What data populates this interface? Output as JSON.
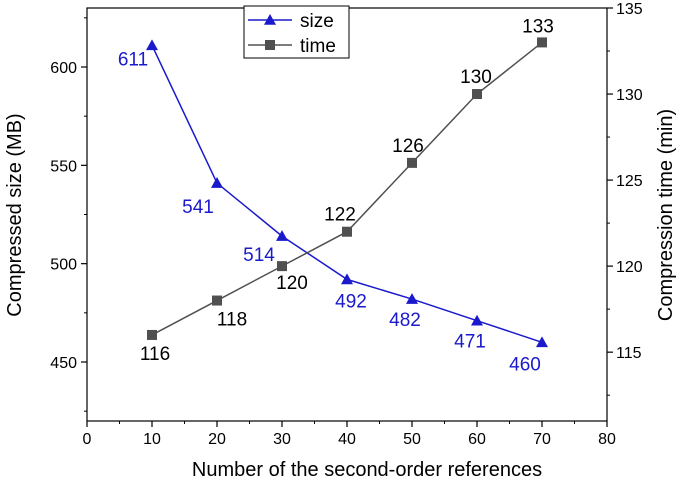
{
  "chart_data": {
    "type": "line",
    "xlabel": "Number of the second-order references",
    "ylabel_left": "Compressed size (MB)",
    "ylabel_right": "Compression time (min)",
    "x": [
      10,
      20,
      30,
      40,
      50,
      60,
      70
    ],
    "xlim": [
      0,
      80
    ],
    "xticks": [
      0,
      10,
      20,
      30,
      40,
      50,
      60,
      70,
      80
    ],
    "ylim_left": [
      420,
      630
    ],
    "yticks_left": [
      450,
      500,
      550,
      600
    ],
    "ylim_right": [
      111,
      135
    ],
    "yticks_right": [
      115,
      120,
      125,
      130,
      135
    ],
    "grid": false,
    "legend_position": "top-center",
    "series": [
      {
        "name": "size",
        "axis": "left",
        "color": "#1a1acc",
        "marker": "triangle",
        "values": [
          611,
          541,
          514,
          492,
          482,
          471,
          460
        ],
        "labels": [
          "611",
          "541",
          "514",
          "492",
          "482",
          "471",
          "460"
        ]
      },
      {
        "name": "time",
        "axis": "right",
        "color": "#505050",
        "marker": "square",
        "values": [
          116,
          118,
          120,
          122,
          126,
          130,
          133
        ],
        "labels": [
          "116",
          "118",
          "120",
          "122",
          "126",
          "130",
          "133"
        ]
      }
    ]
  }
}
